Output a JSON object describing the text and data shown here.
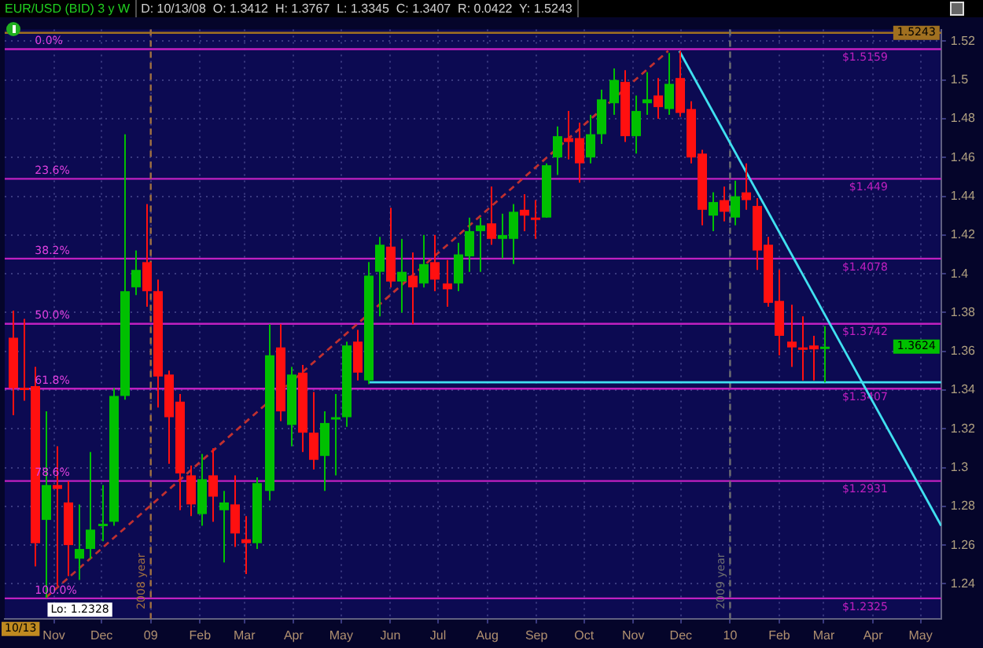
{
  "chart_data": {
    "type": "candlestick",
    "title": "EUR/USD (BID) 3 y W",
    "subtitle": "D: 10/13/08  O: 1.3412  H: 1.3767  L: 1.3345  C: 1.3407  R: 0.0422  Y: 1.5243",
    "x": [
      "2008-10-06",
      "2008-10-13",
      "2008-10-20",
      "2008-10-27",
      "2008-11-03",
      "2008-11-10",
      "2008-11-17",
      "2008-11-24",
      "2008-12-01",
      "2008-12-08",
      "2008-12-15",
      "2008-12-22",
      "2008-12-29",
      "2009-01-05",
      "2009-01-12",
      "2009-01-19",
      "2009-01-26",
      "2009-02-02",
      "2009-02-09",
      "2009-02-16",
      "2009-02-23",
      "2009-03-02",
      "2009-03-09",
      "2009-03-16",
      "2009-03-23",
      "2009-03-30",
      "2009-04-06",
      "2009-04-13",
      "2009-04-20",
      "2009-04-27",
      "2009-05-04",
      "2009-05-11",
      "2009-05-18",
      "2009-05-25",
      "2009-06-01",
      "2009-06-08",
      "2009-06-15",
      "2009-06-22",
      "2009-06-29",
      "2009-07-06",
      "2009-07-13",
      "2009-07-20",
      "2009-07-27",
      "2009-08-03",
      "2009-08-10",
      "2009-08-17",
      "2009-08-24",
      "2009-08-31",
      "2009-09-07",
      "2009-09-14",
      "2009-09-21",
      "2009-09-28",
      "2009-10-05",
      "2009-10-12",
      "2009-10-19",
      "2009-10-26",
      "2009-11-02",
      "2009-11-09",
      "2009-11-16",
      "2009-11-23",
      "2009-11-30",
      "2009-12-07",
      "2009-12-14",
      "2009-12-21",
      "2009-12-28",
      "2010-01-04",
      "2010-01-11",
      "2010-01-18",
      "2010-01-25",
      "2010-02-01",
      "2010-02-08",
      "2010-02-15",
      "2010-02-22",
      "2010-03-01"
    ],
    "ohlc": [
      [
        1.367,
        1.381,
        1.327,
        1.341
      ],
      [
        1.3412,
        1.3767,
        1.3345,
        1.3407
      ],
      [
        1.342,
        1.352,
        1.249,
        1.261
      ],
      [
        1.273,
        1.329,
        1.2328,
        1.291
      ],
      [
        1.291,
        1.311,
        1.239,
        1.289
      ],
      [
        1.282,
        1.293,
        1.244,
        1.26
      ],
      [
        1.253,
        1.281,
        1.242,
        1.258
      ],
      [
        1.258,
        1.308,
        1.253,
        1.268
      ],
      [
        1.27,
        1.291,
        1.262,
        1.271
      ],
      [
        1.272,
        1.341,
        1.27,
        1.337
      ],
      [
        1.337,
        1.472,
        1.335,
        1.391
      ],
      [
        1.393,
        1.412,
        1.389,
        1.402
      ],
      [
        1.406,
        1.436,
        1.383,
        1.391
      ],
      [
        1.391,
        1.397,
        1.331,
        1.347
      ],
      [
        1.348,
        1.35,
        1.302,
        1.326
      ],
      [
        1.334,
        1.338,
        1.278,
        1.297
      ],
      [
        1.296,
        1.301,
        1.275,
        1.281
      ],
      [
        1.276,
        1.307,
        1.27,
        1.294
      ],
      [
        1.296,
        1.31,
        1.272,
        1.285
      ],
      [
        1.278,
        1.288,
        1.251,
        1.282
      ],
      [
        1.281,
        1.296,
        1.259,
        1.266
      ],
      [
        1.263,
        1.275,
        1.245,
        1.261
      ],
      [
        1.261,
        1.295,
        1.258,
        1.292
      ],
      [
        1.288,
        1.374,
        1.283,
        1.358
      ],
      [
        1.362,
        1.374,
        1.324,
        1.329
      ],
      [
        1.322,
        1.352,
        1.311,
        1.348
      ],
      [
        1.349,
        1.353,
        1.308,
        1.318
      ],
      [
        1.318,
        1.339,
        1.299,
        1.304
      ],
      [
        1.306,
        1.329,
        1.288,
        1.323
      ],
      [
        1.325,
        1.338,
        1.296,
        1.326
      ],
      [
        1.326,
        1.365,
        1.321,
        1.363
      ],
      [
        1.365,
        1.371,
        1.345,
        1.349
      ],
      [
        1.345,
        1.406,
        1.343,
        1.399
      ],
      [
        1.401,
        1.419,
        1.378,
        1.415
      ],
      [
        1.414,
        1.434,
        1.393,
        1.396
      ],
      [
        1.396,
        1.418,
        1.38,
        1.401
      ],
      [
        1.399,
        1.411,
        1.374,
        1.393
      ],
      [
        1.395,
        1.42,
        1.393,
        1.405
      ],
      [
        1.406,
        1.42,
        1.391,
        1.397
      ],
      [
        1.395,
        1.407,
        1.383,
        1.392
      ],
      [
        1.395,
        1.416,
        1.391,
        1.41
      ],
      [
        1.409,
        1.429,
        1.401,
        1.422
      ],
      [
        1.422,
        1.429,
        1.401,
        1.425
      ],
      [
        1.426,
        1.445,
        1.415,
        1.418
      ],
      [
        1.418,
        1.431,
        1.408,
        1.42
      ],
      [
        1.418,
        1.436,
        1.405,
        1.432
      ],
      [
        1.433,
        1.441,
        1.422,
        1.43
      ],
      [
        1.429,
        1.438,
        1.418,
        1.428
      ],
      [
        1.429,
        1.457,
        1.429,
        1.456
      ],
      [
        1.46,
        1.476,
        1.451,
        1.471
      ],
      [
        1.47,
        1.484,
        1.459,
        1.468
      ],
      [
        1.47,
        1.478,
        1.447,
        1.457
      ],
      [
        1.46,
        1.482,
        1.457,
        1.472
      ],
      [
        1.472,
        1.495,
        1.467,
        1.49
      ],
      [
        1.488,
        1.506,
        1.482,
        1.5
      ],
      [
        1.499,
        1.505,
        1.468,
        1.471
      ],
      [
        1.471,
        1.492,
        1.462,
        1.484
      ],
      [
        1.488,
        1.504,
        1.482,
        1.49
      ],
      [
        1.492,
        1.501,
        1.48,
        1.486
      ],
      [
        1.485,
        1.514,
        1.482,
        1.498
      ],
      [
        1.501,
        1.515,
        1.481,
        1.483
      ],
      [
        1.485,
        1.489,
        1.457,
        1.46
      ],
      [
        1.462,
        1.464,
        1.425,
        1.433
      ],
      [
        1.43,
        1.442,
        1.422,
        1.437
      ],
      [
        1.438,
        1.445,
        1.427,
        1.432
      ],
      [
        1.429,
        1.448,
        1.425,
        1.44
      ],
      [
        1.442,
        1.457,
        1.433,
        1.438
      ],
      [
        1.435,
        1.439,
        1.402,
        1.412
      ],
      [
        1.415,
        1.419,
        1.383,
        1.385
      ],
      [
        1.386,
        1.402,
        1.358,
        1.368
      ],
      [
        1.365,
        1.384,
        1.352,
        1.362
      ],
      [
        1.362,
        1.378,
        1.345,
        1.361
      ],
      [
        1.363,
        1.368,
        1.345,
        1.361
      ],
      [
        1.3614,
        1.373,
        1.344,
        1.3624
      ]
    ],
    "colors": [
      "#ff1010",
      "#ff1010",
      "#ff1010",
      "#00c000",
      "#ff1010",
      "#ff1010",
      "#00c000",
      "#00c000",
      "#00c000",
      "#00c000",
      "#00c000",
      "#00c000",
      "#ff1010",
      "#ff1010",
      "#ff1010",
      "#ff1010",
      "#ff1010",
      "#00c000",
      "#ff1010",
      "#00c000",
      "#ff1010",
      "#ff1010",
      "#00c000",
      "#00c000",
      "#ff1010",
      "#00c000",
      "#ff1010",
      "#ff1010",
      "#00c000",
      "#00c000",
      "#00c000",
      "#ff1010",
      "#00c000",
      "#00c000",
      "#ff1010",
      "#00c000",
      "#ff1010",
      "#00c000",
      "#ff1010",
      "#ff1010",
      "#00c000",
      "#00c000",
      "#00c000",
      "#ff1010",
      "#00c000",
      "#00c000",
      "#ff1010",
      "#ff1010",
      "#00c000",
      "#00c000",
      "#ff1010",
      "#ff1010",
      "#00c000",
      "#00c000",
      "#00c000",
      "#ff1010",
      "#00c000",
      "#00c000",
      "#ff1010",
      "#00c000",
      "#ff1010",
      "#ff1010",
      "#ff1010",
      "#00c000",
      "#ff1010",
      "#00c000",
      "#ff1010",
      "#ff1010",
      "#ff1010",
      "#ff1010",
      "#ff1010",
      "#ff1010",
      "#ff1010",
      "#00c000"
    ],
    "series": [
      {
        "type": "line",
        "color": "#c03030",
        "line_style": "dashed",
        "x": [
          "2008-10-27",
          "2009-11-23"
        ],
        "values": [
          1.233,
          1.515
        ]
      },
      {
        "type": "line",
        "color": "#40e0f0",
        "line_style": "solid",
        "x": [
          "2009-11-30",
          "2010-05-14"
        ],
        "values": [
          1.515,
          1.27
        ]
      },
      {
        "type": "line",
        "color": "#40e0f0",
        "line_style": "solid",
        "x": [
          "2009-05-18",
          "2010-05-14"
        ],
        "values": [
          1.344,
          1.344
        ]
      }
    ],
    "xlim": [
      "2008-10-01",
      "2010-05-14"
    ],
    "xticks": [
      {
        "value": "2008-11-01",
        "label": "Nov"
      },
      {
        "value": "2008-12-01",
        "label": "Dec"
      },
      {
        "value": "2009-01-01",
        "label": "09"
      },
      {
        "value": "2009-02-01",
        "label": "Feb"
      },
      {
        "value": "2009-03-01",
        "label": "Mar"
      },
      {
        "value": "2009-04-01",
        "label": "Apr"
      },
      {
        "value": "2009-05-01",
        "label": "May"
      },
      {
        "value": "2009-06-01",
        "label": "Jun"
      },
      {
        "value": "2009-07-01",
        "label": "Jul"
      },
      {
        "value": "2009-08-01",
        "label": "Aug"
      },
      {
        "value": "2009-09-01",
        "label": "Sep"
      },
      {
        "value": "2009-10-01",
        "label": "Oct"
      },
      {
        "value": "2009-11-01",
        "label": "Nov"
      },
      {
        "value": "2009-12-01",
        "label": "Dec"
      },
      {
        "value": "2010-01-01",
        "label": "10"
      },
      {
        "value": "2010-02-01",
        "label": "Feb"
      },
      {
        "value": "2010-03-01",
        "label": "Mar"
      },
      {
        "value": "2010-04-01",
        "label": "Apr"
      },
      {
        "value": "2010-05-01",
        "label": "May"
      }
    ],
    "ylim": [
      1.222,
      1.526
    ],
    "yticks": [
      1.24,
      1.26,
      1.28,
      1.3,
      1.32,
      1.34,
      1.36,
      1.38,
      1.4,
      1.42,
      1.44,
      1.46,
      1.48,
      1.5,
      1.52
    ],
    "grid": true,
    "ref_lines": [
      {
        "axis": "y",
        "value": 1.5159,
        "label": "$1.5159",
        "color": "#c020c0"
      },
      {
        "axis": "y",
        "value": 1.449,
        "label": "$1.449",
        "color": "#c020c0"
      },
      {
        "axis": "y",
        "value": 1.4078,
        "label": "$1.4078",
        "color": "#c020c0"
      },
      {
        "axis": "y",
        "value": 1.3742,
        "label": "$1.3742",
        "color": "#c020c0"
      },
      {
        "axis": "y",
        "value": 1.3407,
        "label": "$1.3407",
        "color": "#c020c0"
      },
      {
        "axis": "y",
        "value": 1.2931,
        "label": "$1.2931",
        "color": "#c020c0"
      },
      {
        "axis": "y",
        "value": 1.2325,
        "label": "$1.2325",
        "color": "#c020c0"
      },
      {
        "axis": "y",
        "value": 1.5243,
        "color": "#a07020"
      },
      {
        "axis": "x",
        "value": "2009-01-01",
        "label": "2008 year",
        "color": "#a07040",
        "line_style": "dashed"
      },
      {
        "axis": "x",
        "value": "2010-01-01",
        "label": "2009 year",
        "color": "#707070",
        "line_style": "dashed"
      }
    ],
    "annotations": [
      {
        "text": "0.0%",
        "x": "2008-10-20",
        "y": 1.5159
      },
      {
        "text": "23.6%",
        "x": "2008-10-20",
        "y": 1.449
      },
      {
        "text": "38.2%",
        "x": "2008-10-20",
        "y": 1.4078
      },
      {
        "text": "50.0%",
        "x": "2008-10-20",
        "y": 1.3742
      },
      {
        "text": "61.8%",
        "x": "2008-10-20",
        "y": 1.3407
      },
      {
        "text": "78.6%",
        "x": "2008-10-20",
        "y": 1.2931
      },
      {
        "text": "100.0%",
        "x": "2008-10-20",
        "y": 1.2325
      },
      {
        "text": "Lo: 1.2328",
        "x": "2008-10-27",
        "y": 1.2328
      },
      {
        "text": "1.5243",
        "y": 1.5243
      },
      {
        "text": "1.3624",
        "y": 1.3624
      },
      "10/13"
    ]
  }
}
